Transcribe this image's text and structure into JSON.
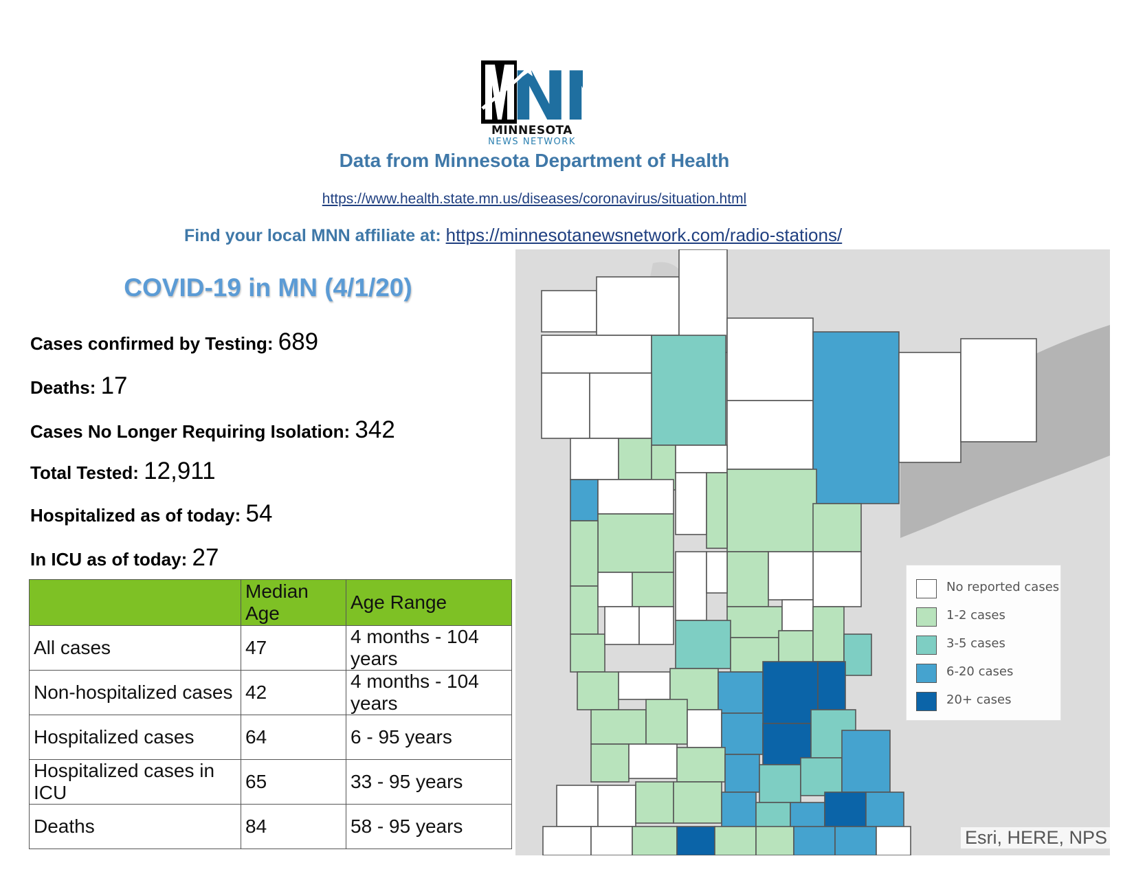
{
  "logo": {
    "letters": "MNN",
    "name_top": "MINNESOTA",
    "name_bottom": "NEWS NETWORK",
    "colors": {
      "dark": "#000000",
      "accent": "#1f6fa0"
    }
  },
  "source": {
    "heading": "Data from Minnesota Department of Health",
    "link": "https://www.health.state.mn.us/diseases/coronavirus/situation.html"
  },
  "affiliate": {
    "label": "Find your local MNN affiliate at:",
    "link": "https://minnesotanewsnetwork.com/radio-stations/"
  },
  "report": {
    "title": "COVID-19 in MN (4/1/20)",
    "stats": [
      {
        "label": "Cases confirmed by Testing:",
        "value": "689"
      },
      {
        "label": "Deaths:",
        "value": "17"
      },
      {
        "label": "Cases No Longer Requiring Isolation:",
        "value": "342"
      },
      {
        "label": "Total Tested:",
        "value": "12,911"
      },
      {
        "label": "Hospitalized as of today:",
        "value": "54"
      },
      {
        "label": "In ICU as of today:",
        "value": "27"
      }
    ]
  },
  "age_table": {
    "header_color": "#7ec125",
    "columns": [
      "",
      "Median Age",
      "Age Range"
    ],
    "rows": [
      [
        "All cases",
        "47",
        "4 months - 104 years"
      ],
      [
        "Non-hospitalized cases",
        "42",
        "4 months - 104 years"
      ],
      [
        "Hospitalized cases",
        "64",
        "6 - 95 years"
      ],
      [
        "Hospitalized cases in ICU",
        "65",
        "33 - 95 years"
      ],
      [
        "Deaths",
        "84",
        "58 - 95 years"
      ]
    ]
  },
  "map": {
    "legend": [
      {
        "label": "No reported cases",
        "color": "#ffffff"
      },
      {
        "label": "1-2 cases",
        "color": "#b8e3bc"
      },
      {
        "label": "3-5 cases",
        "color": "#7ecec3"
      },
      {
        "label": "6-20 cases",
        "color": "#45a3cf"
      },
      {
        "label": "20+ cases",
        "color": "#0b64a8"
      }
    ],
    "attribution": "Esri, HERE, NPS",
    "colors": {
      "background": "#dcdcdc",
      "lake": "#b4b4b4",
      "border": "#555555"
    }
  }
}
